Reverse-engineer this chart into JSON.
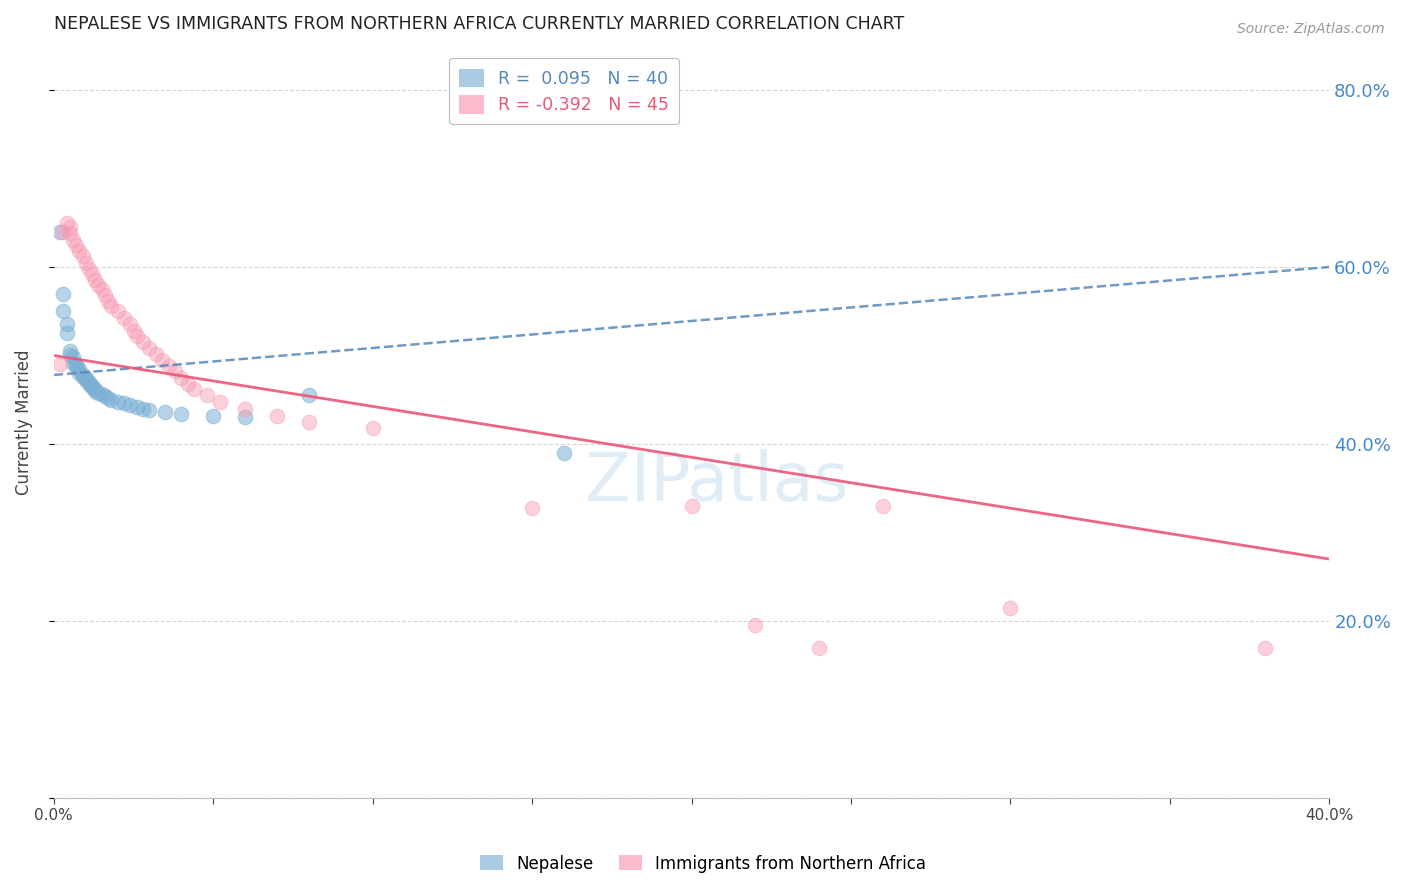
{
  "title": "NEPALESE VS IMMIGRANTS FROM NORTHERN AFRICA CURRENTLY MARRIED CORRELATION CHART",
  "source": "Source: ZipAtlas.com",
  "ylabel_label": "Currently Married",
  "x_min": 0.0,
  "x_max": 0.4,
  "y_min": 0.0,
  "y_max": 0.85,
  "legend_r1": "R =  0.095",
  "legend_n1": "N = 40",
  "legend_r2": "R = -0.392",
  "legend_n2": "N = 45",
  "background_color": "#ffffff",
  "grid_color": "#cccccc",
  "blue_color": "#7bafd4",
  "pink_color": "#f898b0",
  "blue_line_color": "#5588bb",
  "pink_line_color": "#ee5577",
  "right_axis_color": "#4488cc",
  "nepalese_x": [
    0.002,
    0.003,
    0.003,
    0.004,
    0.004,
    0.005,
    0.005,
    0.006,
    0.006,
    0.007,
    0.007,
    0.008,
    0.008,
    0.009,
    0.009,
    0.01,
    0.01,
    0.011,
    0.011,
    0.012,
    0.012,
    0.013,
    0.013,
    0.014,
    0.015,
    0.016,
    0.017,
    0.018,
    0.02,
    0.022,
    0.024,
    0.026,
    0.028,
    0.03,
    0.035,
    0.04,
    0.05,
    0.06,
    0.08,
    0.16
  ],
  "nepalese_y": [
    0.64,
    0.57,
    0.55,
    0.535,
    0.525,
    0.505,
    0.5,
    0.498,
    0.492,
    0.49,
    0.487,
    0.485,
    0.48,
    0.478,
    0.476,
    0.474,
    0.472,
    0.47,
    0.468,
    0.466,
    0.464,
    0.462,
    0.46,
    0.458,
    0.456,
    0.454,
    0.452,
    0.45,
    0.448,
    0.446,
    0.444,
    0.442,
    0.44,
    0.438,
    0.436,
    0.434,
    0.432,
    0.43,
    0.455,
    0.39
  ],
  "northern_africa_x": [
    0.002,
    0.003,
    0.004,
    0.005,
    0.005,
    0.006,
    0.007,
    0.008,
    0.009,
    0.01,
    0.011,
    0.012,
    0.013,
    0.014,
    0.015,
    0.016,
    0.017,
    0.018,
    0.02,
    0.022,
    0.024,
    0.025,
    0.026,
    0.028,
    0.03,
    0.032,
    0.034,
    0.036,
    0.038,
    0.04,
    0.042,
    0.044,
    0.048,
    0.052,
    0.06,
    0.07,
    0.08,
    0.1,
    0.15,
    0.2,
    0.22,
    0.24,
    0.26,
    0.3,
    0.38
  ],
  "northern_africa_y": [
    0.49,
    0.64,
    0.65,
    0.645,
    0.638,
    0.63,
    0.625,
    0.618,
    0.612,
    0.605,
    0.598,
    0.592,
    0.585,
    0.58,
    0.575,
    0.568,
    0.562,
    0.556,
    0.55,
    0.542,
    0.535,
    0.528,
    0.522,
    0.515,
    0.508,
    0.502,
    0.495,
    0.488,
    0.482,
    0.475,
    0.468,
    0.462,
    0.455,
    0.448,
    0.44,
    0.432,
    0.425,
    0.418,
    0.328,
    0.33,
    0.195,
    0.17,
    0.33,
    0.215,
    0.17
  ],
  "blue_trend_x": [
    0.0,
    0.4
  ],
  "blue_trend_y": [
    0.478,
    0.6
  ],
  "pink_trend_x": [
    0.0,
    0.4
  ],
  "pink_trend_y": [
    0.5,
    0.27
  ]
}
